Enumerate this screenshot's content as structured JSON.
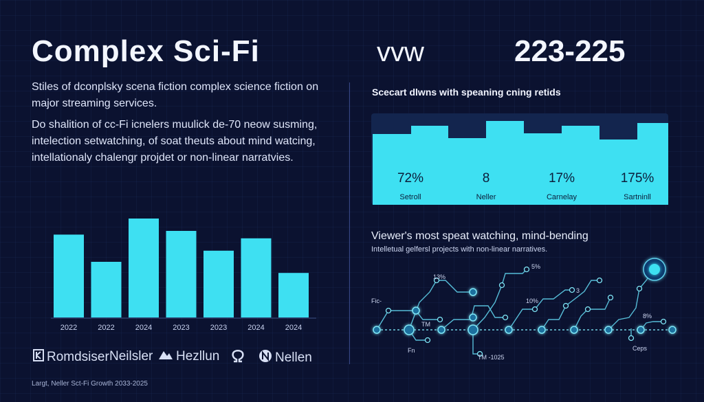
{
  "header": {
    "title": "Complex Sci-Fi",
    "title_mid": "vvw",
    "title_years": "223-225"
  },
  "intro": {
    "paragraph1": "Stiles of dconplsky scena fiction complex science fiction on major streaming services.",
    "paragraph2": "Do shalition of cc-Fi icnelers muulick de-70 neow susming, intelection setwatching, of soat theuts about mind watcing, intellationaly chalengr projdet or non-linear narratvies."
  },
  "chart_data": [
    {
      "type": "bar",
      "categories": [
        "2022",
        "2022",
        "2024",
        "2023",
        "2023",
        "2024",
        "2024"
      ],
      "values": [
        67,
        45,
        80,
        70,
        54,
        64,
        36
      ],
      "ylim": [
        0,
        100
      ],
      "title": "",
      "xlabel": "",
      "ylabel": ""
    },
    {
      "type": "table",
      "title": "Scecart dlwns with speaning cning retids",
      "cards": [
        {
          "value": "72%",
          "label": "Setroll"
        },
        {
          "value": "8",
          "label": "Neller"
        },
        {
          "value": "17%",
          "label": "Carnelay"
        },
        {
          "value": "175%",
          "label": "Sartninll"
        }
      ]
    }
  ],
  "brands": [
    {
      "name": "Romdsiser",
      "icon": "k-logo-icon"
    },
    {
      "name": "Neilsler",
      "icon": ""
    },
    {
      "name": "Hezllun",
      "icon": "mountain-logo-icon"
    },
    {
      "name": "",
      "icon": "omega-logo-icon"
    },
    {
      "name": "Nellen",
      "icon": "n-circle-logo-icon"
    }
  ],
  "footer": {
    "text": "Largt, Neller Sct-Fi Growth 2033-2025"
  },
  "network": {
    "title": "Viewer's most speat watching, mind-bending",
    "subtitle": "Intelletual gelfersl projects with non-linear narratives.",
    "labels": [
      "Fic-",
      "13%",
      "5%",
      "3",
      "10%",
      "8%",
      "Fn",
      "TM",
      "Ceps",
      "TM -1025"
    ]
  },
  "colors": {
    "background": "#0b1230",
    "accent": "#3ee0f2",
    "panel": "#13254e"
  }
}
